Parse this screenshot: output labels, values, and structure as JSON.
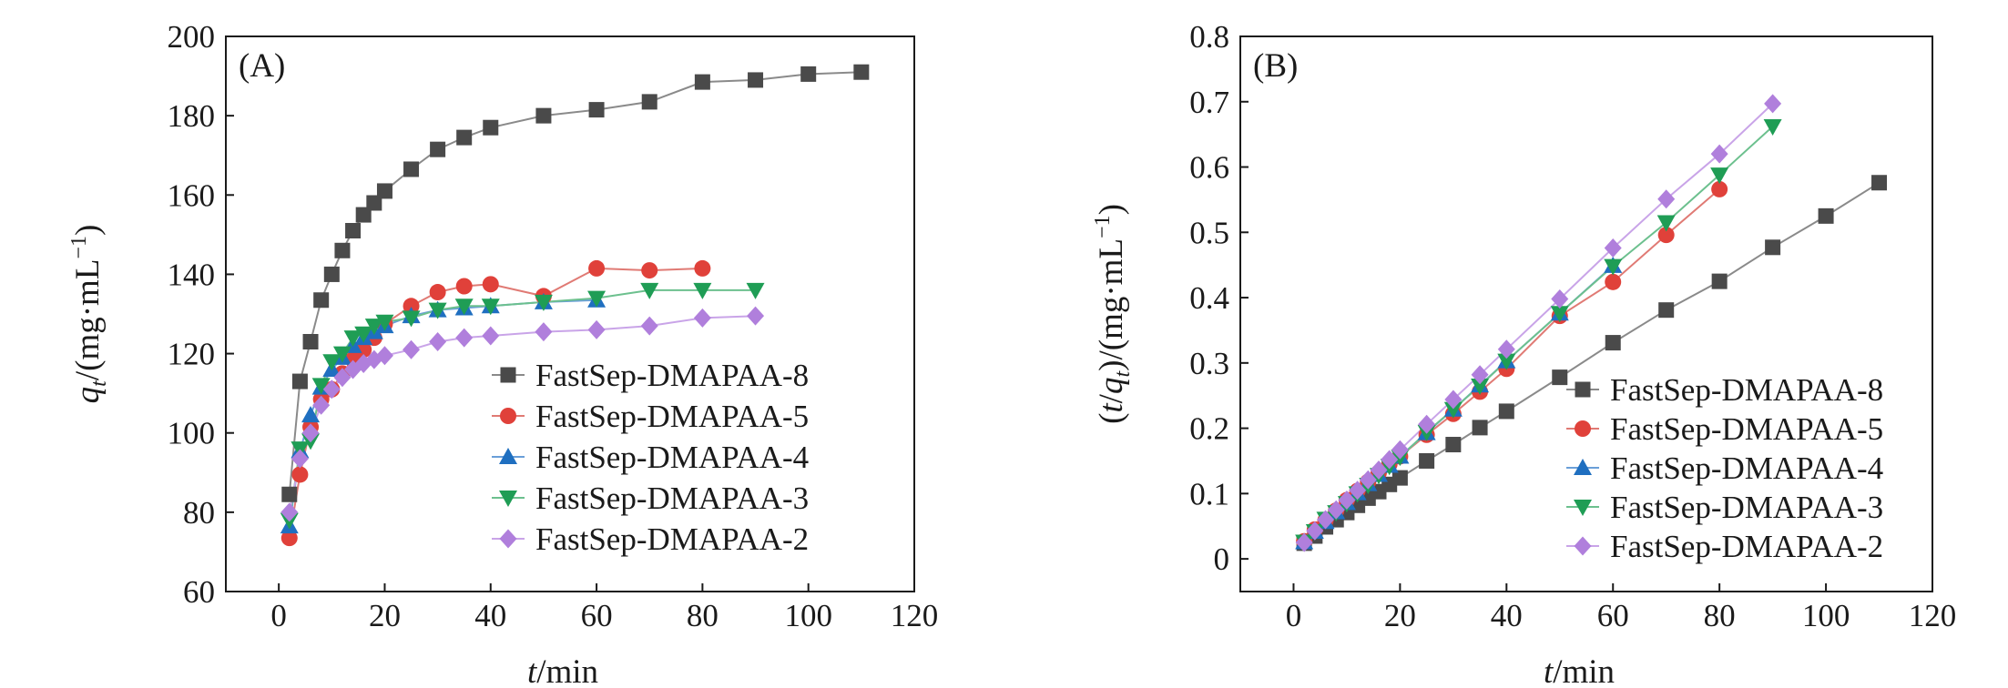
{
  "chart_data": [
    {
      "type": "line",
      "panel_label": "(A)",
      "ylabel_var": "q",
      "ylabel_sub": "t",
      "ylabel_rest": "/(mg·mL",
      "ylabel_sup": "−1",
      "ylabel_close": ")",
      "xlabel_var": "t",
      "xlabel_rest": "/min",
      "xlim": [
        -10,
        120
      ],
      "ylim": [
        60,
        200
      ],
      "xticks": [
        0,
        20,
        40,
        60,
        80,
        100,
        120
      ],
      "yticks": [
        60,
        80,
        100,
        120,
        140,
        160,
        180,
        200
      ],
      "legend_position": "bottom-right",
      "series": [
        {
          "name": "FastSep-DMAPAA-8",
          "color": "#4a4a4a",
          "line_color": "#8a8a8a",
          "marker": "square",
          "x": [
            2,
            4,
            6,
            8,
            10,
            12,
            14,
            16,
            18,
            20,
            25,
            30,
            35,
            40,
            50,
            60,
            70,
            80,
            90,
            100,
            110
          ],
          "y": [
            84.5,
            113,
            123,
            133.5,
            140,
            146,
            151,
            155,
            158,
            161,
            166.5,
            171.5,
            174.5,
            177,
            180,
            181.5,
            183.5,
            188.5,
            189,
            190.5,
            191
          ]
        },
        {
          "name": "FastSep-DMAPAA-5",
          "color": "#e0413a",
          "line_color": "#e07a74",
          "marker": "circle",
          "x": [
            2,
            4,
            6,
            8,
            10,
            12,
            14,
            16,
            18,
            20,
            25,
            30,
            35,
            40,
            50,
            60,
            70,
            80
          ],
          "y": [
            73.5,
            89.5,
            101.5,
            108.5,
            111,
            115,
            118.5,
            121,
            124,
            127.5,
            132,
            135.5,
            137,
            137.5,
            134.5,
            141.5,
            141,
            141.5
          ]
        },
        {
          "name": "FastSep-DMAPAA-4",
          "color": "#1f6fc0",
          "line_color": "#6a9fd8",
          "marker": "triangle-up",
          "x": [
            2,
            4,
            6,
            8,
            10,
            12,
            14,
            16,
            18,
            20,
            25,
            30,
            35,
            40,
            50,
            60
          ],
          "y": [
            76.5,
            95.5,
            104.5,
            111.5,
            116,
            119,
            122,
            124,
            125.5,
            127,
            129.5,
            131,
            131.5,
            132,
            133,
            133.5
          ]
        },
        {
          "name": "FastSep-DMAPAA-3",
          "color": "#1f9d55",
          "line_color": "#6cc08e",
          "marker": "triangle-down",
          "x": [
            2,
            4,
            6,
            8,
            10,
            12,
            14,
            16,
            18,
            20,
            25,
            30,
            35,
            40,
            50,
            60,
            70,
            80,
            90
          ],
          "y": [
            78,
            96,
            98,
            112,
            118,
            120,
            124,
            125,
            127,
            128,
            129,
            131,
            132,
            132,
            133,
            134,
            136,
            136,
            136
          ]
        },
        {
          "name": "FastSep-DMAPAA-2",
          "color": "#b07fdc",
          "line_color": "#c9a4e8",
          "marker": "diamond",
          "x": [
            2,
            4,
            6,
            8,
            10,
            12,
            14,
            16,
            18,
            20,
            25,
            30,
            35,
            40,
            50,
            60,
            70,
            80,
            90
          ],
          "y": [
            80,
            93.5,
            100,
            107,
            111,
            114,
            116,
            117.5,
            118.5,
            119.5,
            121,
            123,
            124,
            124.5,
            125.5,
            126,
            127,
            129,
            129.5
          ]
        }
      ]
    },
    {
      "type": "line",
      "panel_label": "(B)",
      "ylabel_paren_open": "(",
      "ylabel_var": "t",
      "ylabel_mid": "/",
      "ylabel_var2": "q",
      "ylabel_sub": "t",
      "ylabel_rest": ")/(mg·mL",
      "ylabel_sup": "−1",
      "ylabel_close": ")",
      "xlabel_var": "t",
      "xlabel_rest": "/min",
      "xlim": [
        -10,
        120
      ],
      "ylim": [
        -0.05,
        0.8
      ],
      "xticks": [
        0,
        20,
        40,
        60,
        80,
        100,
        120
      ],
      "yticks": [
        0,
        0.1,
        0.2,
        0.3,
        0.4,
        0.5,
        0.6,
        0.7,
        0.8
      ],
      "ytick_labels": [
        "0",
        "0.1",
        "0.2",
        "0.3",
        "0.4",
        "0.5",
        "0.6",
        "0.7",
        "0.8"
      ],
      "legend_position": "bottom-right",
      "series": [
        {
          "name": "FastSep-DMAPAA-8",
          "color": "#4a4a4a",
          "line_color": "#8a8a8a",
          "marker": "square",
          "x": [
            2,
            4,
            6,
            8,
            10,
            12,
            14,
            16,
            18,
            20,
            25,
            30,
            35,
            40,
            50,
            60,
            70,
            80,
            90,
            100,
            110
          ],
          "y": [
            0.024,
            0.035,
            0.049,
            0.06,
            0.071,
            0.082,
            0.093,
            0.103,
            0.114,
            0.124,
            0.15,
            0.175,
            0.201,
            0.226,
            0.278,
            0.331,
            0.381,
            0.425,
            0.477,
            0.525,
            0.576
          ]
        },
        {
          "name": "FastSep-DMAPAA-5",
          "color": "#e0413a",
          "line_color": "#e07a74",
          "marker": "circle",
          "x": [
            2,
            4,
            6,
            8,
            10,
            12,
            14,
            16,
            18,
            20,
            25,
            30,
            35,
            40,
            50,
            60,
            70,
            80
          ],
          "y": [
            0.027,
            0.045,
            0.059,
            0.074,
            0.09,
            0.104,
            0.118,
            0.132,
            0.145,
            0.157,
            0.19,
            0.222,
            0.256,
            0.291,
            0.372,
            0.424,
            0.496,
            0.566
          ]
        },
        {
          "name": "FastSep-DMAPAA-4",
          "color": "#1f6fc0",
          "line_color": "#6a9fd8",
          "marker": "triangle-up",
          "x": [
            2,
            4,
            6,
            8,
            10,
            12,
            14,
            16,
            18,
            20,
            25,
            30,
            35,
            40,
            50,
            60
          ],
          "y": [
            0.026,
            0.042,
            0.057,
            0.072,
            0.086,
            0.101,
            0.115,
            0.129,
            0.143,
            0.157,
            0.193,
            0.229,
            0.266,
            0.303,
            0.376,
            0.449
          ]
        },
        {
          "name": "FastSep-DMAPAA-3",
          "color": "#1f9d55",
          "line_color": "#6cc08e",
          "marker": "triangle-down",
          "x": [
            2,
            4,
            6,
            8,
            10,
            12,
            14,
            16,
            18,
            20,
            25,
            30,
            35,
            40,
            50,
            60,
            70,
            80,
            90
          ],
          "y": [
            0.026,
            0.042,
            0.061,
            0.071,
            0.085,
            0.1,
            0.113,
            0.128,
            0.142,
            0.156,
            0.194,
            0.229,
            0.265,
            0.303,
            0.376,
            0.448,
            0.515,
            0.588,
            0.662
          ]
        },
        {
          "name": "FastSep-DMAPAA-2",
          "color": "#b07fdc",
          "line_color": "#c9a4e8",
          "marker": "diamond",
          "x": [
            2,
            4,
            6,
            8,
            10,
            12,
            14,
            16,
            18,
            20,
            25,
            30,
            35,
            40,
            50,
            60,
            70,
            80,
            90
          ],
          "y": [
            0.025,
            0.043,
            0.06,
            0.075,
            0.09,
            0.105,
            0.121,
            0.136,
            0.152,
            0.167,
            0.206,
            0.244,
            0.282,
            0.321,
            0.398,
            0.476,
            0.551,
            0.62,
            0.697
          ]
        }
      ]
    }
  ]
}
